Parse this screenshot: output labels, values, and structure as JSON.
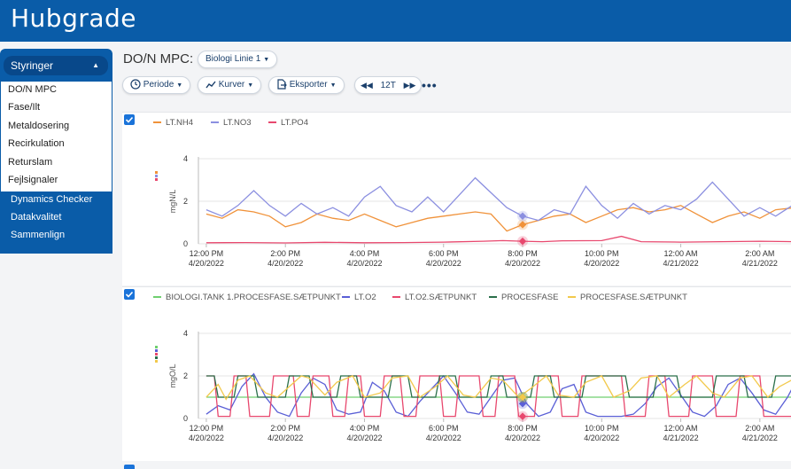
{
  "app": {
    "brand": "Hubgrade"
  },
  "sidebar": {
    "header": "Styringer",
    "menu": [
      "DO/N MPC",
      "Fase/Ilt",
      "Metaldosering",
      "Recirkulation",
      "Returslam",
      "Fejlsignaler"
    ],
    "links": [
      "Dynamics Checker",
      "Datakvalitet",
      "Sammenlign"
    ]
  },
  "main": {
    "title": "DO/N MPC:",
    "dropdown": "Biologi Linie 1",
    "toolbar": {
      "periode": "Periode",
      "kurver": "Kurver",
      "eksporter": "Eksporter",
      "range": "12T"
    }
  },
  "colors": {
    "brand": "#0a5ca8",
    "accent": "#1a73d9"
  },
  "chart_data": [
    {
      "type": "line",
      "ylabel": "mgN/L",
      "ylim": [
        0,
        4
      ],
      "yticks": [
        0,
        2,
        4
      ],
      "xticks": [
        {
          "t": 0,
          "time": "12:00 PM",
          "date": "4/20/2022"
        },
        {
          "t": 2,
          "time": "2:00 PM",
          "date": "4/20/2022"
        },
        {
          "t": 4,
          "time": "4:00 PM",
          "date": "4/20/2022"
        },
        {
          "t": 6,
          "time": "6:00 PM",
          "date": "4/20/2022"
        },
        {
          "t": 8,
          "time": "8:00 PM",
          "date": "4/20/2022"
        },
        {
          "t": 10,
          "time": "10:00 PM",
          "date": "4/20/2022"
        },
        {
          "t": 12,
          "time": "12:00 AM",
          "date": "4/21/2022"
        },
        {
          "t": 14,
          "time": "2:00 AM",
          "date": "4/21/2022"
        }
      ],
      "xlim": [
        -0.2,
        14.9
      ],
      "series": [
        {
          "name": "LT.NH4",
          "color": "#f0923a",
          "x": [
            0,
            0.4,
            0.8,
            1.2,
            1.6,
            2,
            2.4,
            2.8,
            3.2,
            3.6,
            4,
            4.4,
            4.8,
            5.2,
            5.6,
            6,
            6.4,
            6.8,
            7.2,
            7.6,
            8,
            8.4,
            8.8,
            9.2,
            9.6,
            10,
            10.4,
            10.8,
            11.2,
            11.6,
            12,
            12.4,
            12.8,
            13.2,
            13.6,
            14,
            14.4,
            14.9
          ],
          "y": [
            1.4,
            1.2,
            1.6,
            1.5,
            1.3,
            0.8,
            1.0,
            1.4,
            1.2,
            1.1,
            1.4,
            1.1,
            0.8,
            1.0,
            1.2,
            1.3,
            1.4,
            1.5,
            1.4,
            0.6,
            0.9,
            1.1,
            1.3,
            1.4,
            1.0,
            1.3,
            1.6,
            1.7,
            1.5,
            1.6,
            1.8,
            1.4,
            1.0,
            1.3,
            1.5,
            1.2,
            1.6,
            1.7
          ]
        },
        {
          "name": "LT.NO3",
          "color": "#8b8fe0",
          "x": [
            0,
            0.4,
            0.8,
            1.2,
            1.6,
            2,
            2.4,
            2.8,
            3.2,
            3.6,
            4,
            4.4,
            4.8,
            5.2,
            5.6,
            6,
            6.4,
            6.8,
            7.2,
            7.6,
            8,
            8.4,
            8.8,
            9.2,
            9.6,
            10,
            10.4,
            10.8,
            11.2,
            11.6,
            12,
            12.4,
            12.8,
            13.2,
            13.6,
            14,
            14.4,
            14.9
          ],
          "y": [
            1.6,
            1.3,
            1.8,
            2.5,
            1.8,
            1.3,
            1.9,
            1.4,
            1.7,
            1.3,
            2.2,
            2.7,
            1.8,
            1.5,
            2.2,
            1.5,
            2.3,
            3.1,
            2.4,
            1.7,
            1.3,
            1.1,
            1.6,
            1.4,
            2.7,
            1.8,
            1.2,
            1.9,
            1.4,
            1.8,
            1.6,
            2.1,
            2.9,
            2.1,
            1.3,
            1.7,
            1.3,
            1.9
          ]
        },
        {
          "name": "LT.PO4",
          "color": "#e8486e",
          "x": [
            0,
            1,
            2,
            3,
            4,
            5,
            6,
            7,
            7.5,
            8,
            8.5,
            9,
            10,
            10.5,
            11,
            12,
            13,
            14,
            14.9
          ],
          "y": [
            0.05,
            0.06,
            0.04,
            0.07,
            0.05,
            0.06,
            0.08,
            0.12,
            0.15,
            0.12,
            0.1,
            0.14,
            0.15,
            0.35,
            0.1,
            0.08,
            0.1,
            0.12,
            0.1
          ]
        }
      ]
    },
    {
      "type": "line",
      "ylabel": "mgO/L",
      "ylim": [
        0,
        4
      ],
      "yticks": [
        0,
        2,
        4
      ],
      "xticks": [
        {
          "t": 0,
          "time": "12:00 PM",
          "date": "4/20/2022"
        },
        {
          "t": 2,
          "time": "2:00 PM",
          "date": "4/20/2022"
        },
        {
          "t": 4,
          "time": "4:00 PM",
          "date": "4/20/2022"
        },
        {
          "t": 6,
          "time": "6:00 PM",
          "date": "4/20/2022"
        },
        {
          "t": 8,
          "time": "8:00 PM",
          "date": "4/20/2022"
        },
        {
          "t": 10,
          "time": "10:00 PM",
          "date": "4/20/2022"
        },
        {
          "t": 12,
          "time": "12:00 AM",
          "date": "4/21/2022"
        },
        {
          "t": 14,
          "time": "2:00 AM",
          "date": "4/21/2022"
        }
      ],
      "xlim": [
        -0.2,
        14.9
      ],
      "series": [
        {
          "name": "BIOLOGI.TANK 1.PROCESFASE.SÆTPUNKT",
          "color": "#6fcf6f",
          "x": [
            0,
            14.9
          ],
          "y": [
            1,
            1
          ]
        },
        {
          "name": "LT.O2",
          "color": "#5a5fd6",
          "x": [
            0,
            0.3,
            0.6,
            0.9,
            1.2,
            1.5,
            1.8,
            2.1,
            2.4,
            2.7,
            3.0,
            3.3,
            3.6,
            3.9,
            4.2,
            4.5,
            4.8,
            5.1,
            5.4,
            5.7,
            6.0,
            6.3,
            6.6,
            6.9,
            7.2,
            7.5,
            7.8,
            8.1,
            8.4,
            8.7,
            9.0,
            9.3,
            9.6,
            9.9,
            10.2,
            10.5,
            10.8,
            11.1,
            11.4,
            11.7,
            12.0,
            12.3,
            12.6,
            12.9,
            13.2,
            13.5,
            13.8,
            14.1,
            14.4,
            14.7,
            14.9
          ],
          "y": [
            0.2,
            0.6,
            0.4,
            1.5,
            2.1,
            1.0,
            0.3,
            0.1,
            1.2,
            1.9,
            1.6,
            0.4,
            0.2,
            0.3,
            1.7,
            1.3,
            0.3,
            0.1,
            0.8,
            1.4,
            2.0,
            1.2,
            0.3,
            0.2,
            1.0,
            1.8,
            1.9,
            0.7,
            0.1,
            0.3,
            1.4,
            1.6,
            0.3,
            0.1,
            0.1,
            0.1,
            0.2,
            0.7,
            1.5,
            1.9,
            1.1,
            0.3,
            0.1,
            0.6,
            1.6,
            1.9,
            1.2,
            0.4,
            0.2,
            1.0,
            1.7
          ]
        },
        {
          "name": "LT.O2.SÆTPUNKT",
          "color": "#e8486e",
          "x": [
            0,
            0.2,
            0.3,
            0.6,
            0.7,
            1.0,
            1.1,
            1.6,
            1.7,
            2.2,
            2.3,
            2.6,
            2.7,
            3.1,
            3.2,
            3.5,
            3.6,
            3.9,
            4.0,
            4.4,
            4.5,
            4.9,
            5.0,
            5.3,
            5.4,
            5.9,
            6.0,
            6.3,
            6.4,
            6.9,
            7.0,
            7.3,
            7.4,
            7.8,
            7.9,
            8.3,
            8.4,
            8.9,
            9.0,
            9.4,
            9.5,
            10.5,
            10.6,
            11.1,
            11.2,
            11.6,
            11.7,
            12.2,
            12.3,
            12.8,
            12.9,
            13.4,
            13.5,
            14.0,
            14.1,
            14.9
          ],
          "y": [
            2,
            2,
            0.1,
            0.1,
            2,
            2,
            0.1,
            0.1,
            2,
            2,
            0.1,
            0.1,
            2,
            2,
            0.1,
            0.1,
            2,
            2,
            0.1,
            0.1,
            2,
            2,
            0.1,
            0.1,
            2,
            2,
            0.1,
            0.1,
            2,
            2,
            0.1,
            0.1,
            2,
            2,
            0.1,
            0.1,
            2,
            2,
            0.1,
            0.1,
            2,
            2,
            0.1,
            0.1,
            2,
            2,
            0.1,
            0.1,
            2,
            2,
            0.1,
            0.1,
            2,
            2,
            0.1,
            0.1
          ]
        },
        {
          "name": "PROCESFASE",
          "color": "#2a6f4a",
          "x": [
            0,
            0.2,
            0.3,
            0.7,
            0.8,
            1.2,
            1.3,
            2.0,
            2.1,
            2.6,
            2.7,
            3.3,
            3.4,
            3.8,
            3.9,
            4.6,
            4.7,
            5.1,
            5.2,
            5.8,
            5.9,
            6.3,
            6.4,
            7.1,
            7.2,
            7.5,
            7.6,
            8.2,
            8.3,
            8.7,
            8.8,
            9.5,
            9.6,
            10.6,
            10.7,
            11.3,
            11.4,
            11.9,
            12.0,
            12.8,
            12.9,
            13.6,
            13.7,
            14.3,
            14.4,
            14.9
          ],
          "y": [
            2,
            2,
            1,
            1,
            2,
            2,
            1,
            1,
            2,
            2,
            1,
            1,
            2,
            2,
            1,
            1,
            2,
            2,
            1,
            1,
            2,
            2,
            1,
            1,
            2,
            2,
            1,
            1,
            2,
            2,
            1,
            1,
            2,
            2,
            1,
            1,
            2,
            2,
            1,
            1,
            2,
            2,
            1,
            1,
            2,
            2
          ]
        },
        {
          "name": "PROCESFASE.SÆTPUNKT",
          "color": "#f2c94c",
          "x": [
            0,
            0.3,
            0.5,
            0.8,
            1.1,
            1.5,
            1.8,
            2.4,
            2.6,
            3.0,
            3.3,
            3.7,
            4.0,
            4.4,
            4.7,
            5.1,
            5.4,
            5.8,
            6.1,
            6.5,
            6.8,
            7.2,
            7.5,
            7.9,
            8.2,
            8.6,
            8.9,
            9.3,
            9.6,
            10.0,
            10.3,
            10.7,
            11.0,
            11.4,
            11.7,
            12.1,
            12.4,
            12.8,
            13.1,
            13.5,
            13.8,
            14.2,
            14.5,
            14.9
          ],
          "y": [
            1.0,
            1.6,
            0.9,
            1.8,
            2.0,
            1.2,
            1.0,
            2.0,
            1.9,
            1.1,
            1.7,
            2.0,
            1.0,
            1.2,
            1.9,
            2.0,
            1.0,
            1.5,
            2.0,
            1.1,
            1.0,
            1.9,
            1.8,
            1.0,
            1.4,
            2.0,
            1.1,
            1.0,
            1.7,
            2.0,
            1.0,
            1.3,
            1.9,
            2.0,
            1.0,
            1.6,
            2.0,
            1.2,
            1.0,
            1.9,
            2.0,
            1.0,
            1.5,
            1.9
          ]
        }
      ]
    }
  ]
}
